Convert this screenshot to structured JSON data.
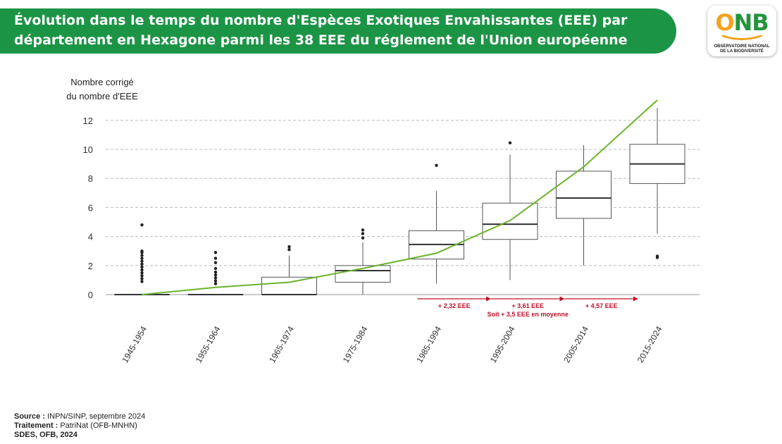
{
  "title": {
    "line1": "Évolution dans le temps du nombre d'Espèces Exotiques Envahissantes (EEE) par",
    "line2": "département en Hexagone parmi les 38 EEE du réglement de l'Union européenne"
  },
  "logo": {
    "letters": [
      "O",
      "N",
      "B"
    ],
    "line1": "OBSERVATOIRE NATIONAL",
    "line2": "DE LA BIODIVERSITÉ",
    "colors": {
      "green": "#24943c",
      "orange": "#f4a21c"
    }
  },
  "chart_data": {
    "type": "boxplot",
    "ylabel": [
      "Nombre corrigé",
      "du nombre d'EEE"
    ],
    "ylim": [
      0,
      13.5
    ],
    "yticks": [
      "0",
      "2",
      "4",
      "6",
      "8",
      "10",
      "12"
    ],
    "grid": "horizontal-dashed",
    "categories": [
      "1945-1954",
      "1955-1964",
      "1965-1974",
      "1975-1984",
      "1985-1994",
      "1995-2004",
      "2005-2014",
      "2015-2024"
    ],
    "boxes": [
      {
        "min": 0,
        "q1": 0,
        "median": 0,
        "q3": 0,
        "max": 0,
        "outliers": [
          0.9,
          1.1,
          1.3,
          1.5,
          1.7,
          1.9,
          2.1,
          2.3,
          2.5,
          2.7,
          2.9,
          3.0,
          4.8
        ]
      },
      {
        "min": 0,
        "q1": 0,
        "median": 0,
        "q3": 0,
        "max": 0,
        "outliers": [
          0.75,
          0.95,
          1.15,
          1.35,
          1.55,
          1.8,
          2.2,
          2.5,
          2.9
        ]
      },
      {
        "min": 0,
        "q1": 0,
        "median": 0,
        "q3": 1.2,
        "max": 2.7,
        "outliers": [
          3.1,
          3.3
        ]
      },
      {
        "min": 0,
        "q1": 0.85,
        "median": 1.65,
        "q3": 2.0,
        "max": 3.6,
        "outliers": [
          3.9,
          4.2,
          4.45
        ]
      },
      {
        "min": 0.75,
        "q1": 2.45,
        "median": 3.45,
        "q3": 4.4,
        "max": 7.15,
        "outliers": [
          8.9
        ]
      },
      {
        "min": 1.0,
        "q1": 3.8,
        "median": 4.85,
        "q3": 6.3,
        "max": 9.65,
        "outliers": [
          10.45
        ]
      },
      {
        "min": 2.0,
        "q1": 5.25,
        "median": 6.65,
        "q3": 8.5,
        "max": 10.3,
        "outliers": []
      },
      {
        "min": 4.2,
        "q1": 7.65,
        "median": 9.0,
        "q3": 10.35,
        "max": 12.85,
        "outliers": [
          2.55,
          2.65
        ]
      }
    ],
    "trend_line": {
      "color": "#6ab42c",
      "values": [
        0,
        0.5,
        0.85,
        1.8,
        2.85,
        5.1,
        8.8,
        13.4
      ]
    },
    "annotations": [
      {
        "from": 4,
        "to": 5,
        "label": "+ 2,32 EEE",
        "sublabel": ""
      },
      {
        "from": 5,
        "to": 6,
        "label": "+ 3,61 EEE",
        "sublabel": "Soit + 3,5 EEE en moyenne"
      },
      {
        "from": 6,
        "to": 7,
        "label": "+ 4,57 EEE",
        "sublabel": ""
      }
    ],
    "colors": {
      "box_stroke": "#555555",
      "outlier": "#222222",
      "annotation": "#c0102a",
      "grid": "#bbbbbb"
    }
  },
  "footer": {
    "source_label": "Source :",
    "source_text": " INPN/SINP, septembre 2024",
    "traitement_label": "Traitement :",
    "traitement_text": " PatriNat (OFB-MNHN)",
    "credit": "SDES, OFB, 2024"
  }
}
